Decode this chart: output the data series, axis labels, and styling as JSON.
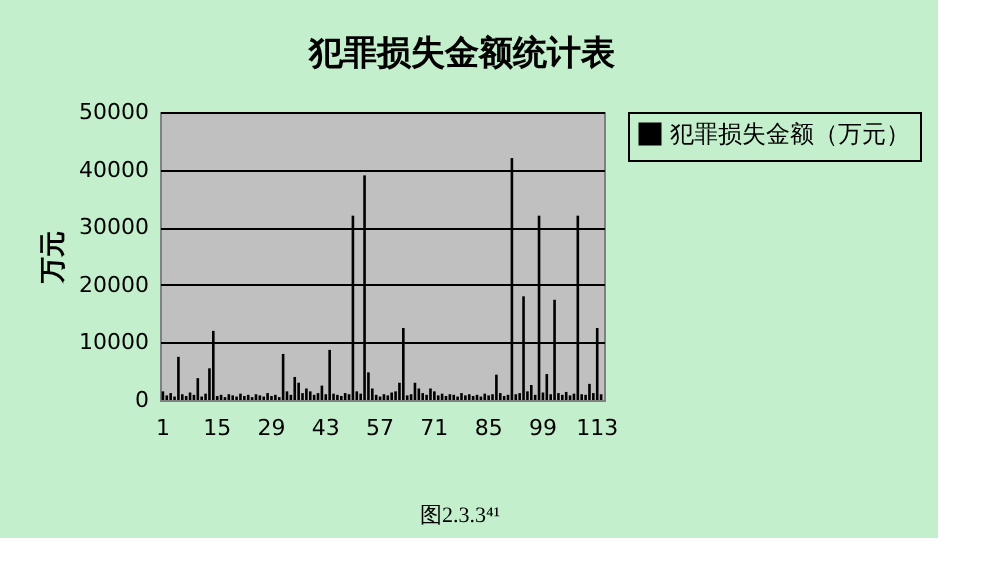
{
  "chart_data": {
    "type": "bar",
    "title": "犯罪损失金额统计表",
    "ylabel": "万元",
    "categories": [
      "1",
      null,
      null,
      null,
      null,
      null,
      null,
      null,
      null,
      null,
      null,
      null,
      null,
      null,
      "15",
      null,
      null,
      null,
      null,
      null,
      null,
      null,
      null,
      null,
      null,
      null,
      null,
      null,
      "29",
      null,
      null,
      null,
      null,
      null,
      null,
      null,
      null,
      null,
      null,
      null,
      null,
      null,
      "43",
      null,
      null,
      null,
      null,
      null,
      null,
      null,
      null,
      null,
      null,
      null,
      null,
      null,
      "57",
      null,
      null,
      null,
      null,
      null,
      null,
      null,
      null,
      null,
      null,
      null,
      null,
      null,
      "71",
      null,
      null,
      null,
      null,
      null,
      null,
      null,
      null,
      null,
      null,
      null,
      null,
      null,
      "85",
      null,
      null,
      null,
      null,
      null,
      null,
      null,
      null,
      null,
      null,
      null,
      null,
      null,
      "99",
      null,
      null,
      null,
      null,
      null,
      null,
      null,
      null,
      null,
      null,
      null,
      null,
      null,
      "113",
      null
    ],
    "series": [
      {
        "name": "犯罪损失金额（万元）",
        "color": "#000000",
        "values": [
          1500,
          800,
          1200,
          600,
          7500,
          1000,
          700,
          1300,
          900,
          3800,
          600,
          1100,
          5500,
          12000,
          700,
          900,
          500,
          1000,
          800,
          600,
          1100,
          700,
          900,
          500,
          1000,
          800,
          600,
          1200,
          700,
          900,
          500,
          8000,
          1500,
          900,
          4000,
          3000,
          1200,
          2000,
          1500,
          900,
          1200,
          2500,
          1000,
          8700,
          1100,
          900,
          700,
          1200,
          1000,
          32000,
          1500,
          1100,
          39000,
          4800,
          2000,
          900,
          600,
          1000,
          800,
          1300,
          1500,
          3000,
          12500,
          800,
          1000,
          3000,
          2000,
          1200,
          900,
          2000,
          1500,
          800,
          1100,
          700,
          1000,
          900,
          600,
          1200,
          800,
          1000,
          700,
          900,
          600,
          1100,
          800,
          1000,
          4400,
          1200,
          700,
          900,
          42000,
          1000,
          1200,
          18000,
          1500,
          2600,
          900,
          32000,
          1300,
          4500,
          1000,
          17400,
          1200,
          900,
          1400,
          800,
          1100,
          32000,
          1000,
          900,
          2800,
          1200,
          12500,
          1000
        ]
      }
    ],
    "ylim": [
      0,
      50000
    ],
    "yticks": [
      0,
      10000,
      20000,
      30000,
      40000,
      50000
    ],
    "grid": "y",
    "legend": "right",
    "annotations": [
      "图2.3.3⁴¹"
    ]
  }
}
